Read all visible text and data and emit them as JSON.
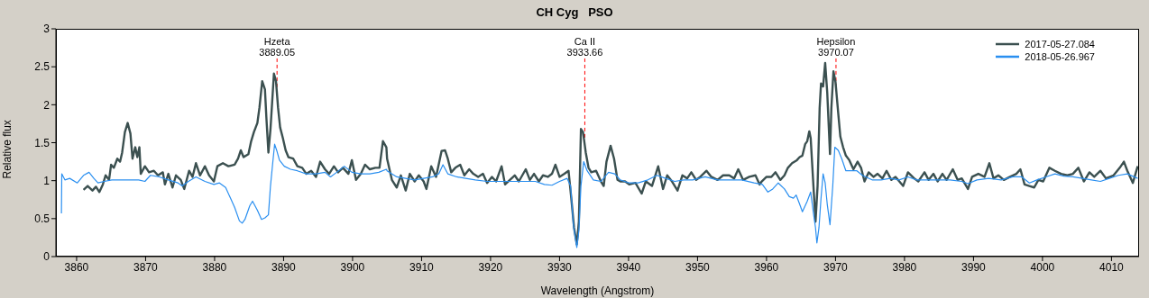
{
  "chart_data": {
    "type": "line",
    "title": "CH Cyg   PSO",
    "xlabel": "Wavelength (Angstrom)",
    "ylabel": "Relative flux",
    "xlim": [
      3857,
      4014
    ],
    "ylim": [
      0,
      3
    ],
    "xticks": [
      3860,
      3870,
      3880,
      3890,
      3900,
      3910,
      3920,
      3930,
      3940,
      3950,
      3960,
      3970,
      3980,
      3990,
      4000,
      4010
    ],
    "yticks": [
      0,
      0.5,
      1,
      1.5,
      2,
      2.5,
      3
    ],
    "legend": "top right",
    "marker": "none",
    "line_style": "solid",
    "ref_lines": [
      {
        "axis": "x",
        "value": 3889.05,
        "label": "Hzeta\n3889.05",
        "color": "#ff0000",
        "line_style": "dashed"
      },
      {
        "axis": "x",
        "value": 3933.66,
        "label": "Ca II\n3933.66",
        "color": "#ff0000",
        "line_style": "dashed"
      },
      {
        "axis": "x",
        "value": 3970.07,
        "label": "Hepsilon\n3970.07",
        "color": "#ff0000",
        "line_style": "dashed"
      }
    ],
    "series": [
      {
        "name": "2017-05-27.084",
        "color": "#3b5050",
        "x": [
          3861.0,
          3861.6,
          3862.3,
          3862.8,
          3863.3,
          3863.8,
          3864.2,
          3864.7,
          3865.0,
          3865.4,
          3865.9,
          3866.3,
          3866.6,
          3867.0,
          3867.4,
          3867.8,
          3868.1,
          3868.5,
          3868.8,
          3869.1,
          3869.3,
          3869.9,
          3870.5,
          3871.2,
          3871.8,
          3872.5,
          3872.8,
          3873.3,
          3873.9,
          3874.4,
          3875.1,
          3875.6,
          3876.3,
          3876.8,
          3877.3,
          3877.9,
          3878.6,
          3879.2,
          3879.9,
          3880.4,
          3881.2,
          3882.0,
          3882.9,
          3883.4,
          3883.8,
          3884.2,
          3884.9,
          3885.3,
          3885.7,
          3886.2,
          3886.5,
          3886.9,
          3887.3,
          3887.5,
          3887.8,
          3888.1,
          3888.6,
          3888.9,
          3889.2,
          3889.5,
          3889.9,
          3890.3,
          3890.7,
          3891.4,
          3892.0,
          3892.7,
          3893.3,
          3894.0,
          3894.7,
          3895.3,
          3896.0,
          3896.6,
          3897.3,
          3897.9,
          3898.6,
          3899.4,
          3899.9,
          3900.5,
          3901.2,
          3901.8,
          3902.5,
          3903.3,
          3903.9,
          3904.4,
          3904.9,
          3905.0,
          3905.7,
          3906.4,
          3907.0,
          3907.7,
          3908.3,
          3909.0,
          3909.6,
          3910.3,
          3910.7,
          3911.4,
          3912.1,
          3912.9,
          3913.4,
          3913.8,
          3914.3,
          3914.9,
          3915.6,
          3916.2,
          3916.9,
          3917.5,
          3918.2,
          3918.9,
          3919.5,
          3920.2,
          3920.8,
          3921.6,
          3922.1,
          3922.8,
          3923.5,
          3924.1,
          3925.1,
          3925.7,
          3926.3,
          3927.0,
          3927.6,
          3928.3,
          3928.9,
          3929.4,
          3930.0,
          3930.7,
          3931.3,
          3931.7,
          3932.1,
          3932.5,
          3932.8,
          3933.1,
          3933.4,
          3933.8,
          3934.2,
          3934.6,
          3935.3,
          3936.0,
          3936.4,
          3936.8,
          3937.4,
          3937.9,
          3938.4,
          3938.8,
          3939.5,
          3940.1,
          3941.0,
          3941.9,
          3942.5,
          3943.4,
          3944.3,
          3945.0,
          3945.6,
          3946.3,
          3947.1,
          3947.8,
          3948.5,
          3949.1,
          3949.8,
          3950.4,
          3951.3,
          3952.0,
          3952.9,
          3953.7,
          3954.6,
          3955.3,
          3955.9,
          3956.6,
          3957.5,
          3958.4,
          3959.0,
          3959.3,
          3960.0,
          3960.7,
          3961.3,
          3962.0,
          3962.6,
          3963.1,
          3963.7,
          3964.4,
          3964.8,
          3965.2,
          3965.6,
          3965.9,
          3966.2,
          3966.4,
          3966.8,
          3967.1,
          3967.4,
          3967.7,
          3967.9,
          3968.2,
          3968.5,
          3968.8,
          3969.2,
          3969.4,
          3969.7,
          3970.0,
          3970.4,
          3970.7,
          3971.1,
          3971.5,
          3972.0,
          3972.6,
          3973.2,
          3973.7,
          3974.2,
          3974.8,
          3975.5,
          3976.1,
          3976.8,
          3977.4,
          3978.1,
          3978.7,
          3979.8,
          3980.5,
          3981.4,
          3982.0,
          3982.9,
          3983.5,
          3984.2,
          3984.8,
          3985.5,
          3986.1,
          3987.0,
          3987.7,
          3988.3,
          3989.2,
          3989.8,
          3990.7,
          3991.6,
          3992.3,
          3992.9,
          3993.6,
          3994.4,
          3995.3,
          3996.2,
          3996.8,
          3997.4,
          3998.1,
          3998.8,
          3999.4,
          4000.1,
          4001.0,
          4001.8,
          4002.7,
          4003.6,
          4004.4,
          4005.2,
          4006.0,
          4006.8,
          4007.5,
          4008.4,
          4009.2,
          4010.3,
          4011.2,
          4011.8,
          4012.3,
          4013.1,
          4013.8
        ],
        "values": [
          0.88,
          0.93,
          0.87,
          0.92,
          0.85,
          0.95,
          1.07,
          1.01,
          1.21,
          1.17,
          1.29,
          1.25,
          1.37,
          1.64,
          1.76,
          1.62,
          1.29,
          1.44,
          1.31,
          1.44,
          1.09,
          1.19,
          1.11,
          1.13,
          1.07,
          1.11,
          0.95,
          1.09,
          0.91,
          1.07,
          1.01,
          0.89,
          1.13,
          1.05,
          1.23,
          1.07,
          1.19,
          1.07,
          0.99,
          1.19,
          1.23,
          1.19,
          1.21,
          1.29,
          1.4,
          1.31,
          1.35,
          1.52,
          1.64,
          1.76,
          1.96,
          2.31,
          2.2,
          1.84,
          1.37,
          1.68,
          2.41,
          2.31,
          1.96,
          1.7,
          1.56,
          1.4,
          1.31,
          1.29,
          1.19,
          1.17,
          1.09,
          1.13,
          1.05,
          1.25,
          1.15,
          1.09,
          1.19,
          1.11,
          1.17,
          1.09,
          1.27,
          1.01,
          1.09,
          1.21,
          1.15,
          1.17,
          1.17,
          1.52,
          1.44,
          1.29,
          1.01,
          0.91,
          1.07,
          0.87,
          1.09,
          0.99,
          1.07,
          0.99,
          0.89,
          1.19,
          1.05,
          1.39,
          1.4,
          1.29,
          1.11,
          1.17,
          1.21,
          1.07,
          1.15,
          1.09,
          1.05,
          1.09,
          0.97,
          1.05,
          0.99,
          1.19,
          0.95,
          1.01,
          1.07,
          0.99,
          1.15,
          1.01,
          1.09,
          0.99,
          1.07,
          1.05,
          1.09,
          1.21,
          1.05,
          1.09,
          1.13,
          0.77,
          0.38,
          0.16,
          0.46,
          1.68,
          1.64,
          1.37,
          1.17,
          1.11,
          1.13,
          0.99,
          0.93,
          1.25,
          1.46,
          1.29,
          1.01,
          0.99,
          0.99,
          0.95,
          0.97,
          0.83,
          0.99,
          0.93,
          1.19,
          0.89,
          1.07,
          0.99,
          0.87,
          1.07,
          1.03,
          1.11,
          1.01,
          1.05,
          1.13,
          1.05,
          1.01,
          1.07,
          1.07,
          1.03,
          1.15,
          1.01,
          1.05,
          1.07,
          0.95,
          0.99,
          1.05,
          1.05,
          1.11,
          1.01,
          1.07,
          1.17,
          1.23,
          1.27,
          1.31,
          1.33,
          1.48,
          1.52,
          1.65,
          1.56,
          0.93,
          0.46,
          0.93,
          1.96,
          2.28,
          2.24,
          2.55,
          2.16,
          1.35,
          1.96,
          2.44,
          2.3,
          1.88,
          1.58,
          1.44,
          1.33,
          1.27,
          1.15,
          1.25,
          1.17,
          0.99,
          1.11,
          1.05,
          1.09,
          1.03,
          1.13,
          1.01,
          1.05,
          0.93,
          1.11,
          1.03,
          0.99,
          1.11,
          1.01,
          1.09,
          0.99,
          1.09,
          1.01,
          1.15,
          1.01,
          1.03,
          0.89,
          1.05,
          1.09,
          1.05,
          1.23,
          1.03,
          1.07,
          1.01,
          1.05,
          1.09,
          1.15,
          0.95,
          0.93,
          0.91,
          1.01,
          0.99,
          1.17,
          1.13,
          1.09,
          1.07,
          1.09,
          1.17,
          0.99,
          1.11,
          1.05,
          1.13,
          1.03,
          1.07,
          1.17,
          1.25,
          1.13,
          0.97,
          1.19
        ]
      },
      {
        "name": "2018-05-26.967",
        "color": "#2a8ff0",
        "x": [
          3857.8,
          3857.85,
          3858.3,
          3859.0,
          3860.1,
          3861.0,
          3861.8,
          3862.5,
          3863.1,
          3864.0,
          3865.1,
          3866.4,
          3867.7,
          3869.0,
          3869.9,
          3870.7,
          3872.0,
          3873.3,
          3874.7,
          3875.3,
          3876.2,
          3877.3,
          3878.6,
          3879.9,
          3880.7,
          3881.6,
          3882.3,
          3882.9,
          3883.6,
          3884.0,
          3884.4,
          3885.1,
          3885.5,
          3886.2,
          3886.8,
          3887.3,
          3887.8,
          3888.1,
          3888.4,
          3888.7,
          3889.0,
          3889.4,
          3890.1,
          3891.0,
          3892.0,
          3893.3,
          3894.7,
          3896.0,
          3896.8,
          3897.7,
          3898.8,
          3899.9,
          3901.2,
          3902.5,
          3903.8,
          3904.9,
          3905.0,
          3906.4,
          3907.7,
          3909.0,
          3910.3,
          3911.6,
          3912.5,
          3913.1,
          3913.8,
          3915.1,
          3916.4,
          3917.8,
          3919.5,
          3921.3,
          3923.0,
          3924.8,
          3926.5,
          3927.8,
          3928.9,
          3930.0,
          3931.1,
          3931.6,
          3932.0,
          3932.5,
          3932.8,
          3933.1,
          3933.5,
          3934.0,
          3934.9,
          3936.0,
          3937.1,
          3938.0,
          3938.8,
          3940.1,
          3941.4,
          3942.8,
          3944.1,
          3945.4,
          3946.7,
          3948.0,
          3949.3,
          3951.1,
          3952.9,
          3954.6,
          3956.4,
          3958.2,
          3959.4,
          3960.2,
          3960.9,
          3961.7,
          3962.6,
          3963.3,
          3963.9,
          3964.3,
          3964.8,
          3965.2,
          3965.9,
          3966.4,
          3966.8,
          3967.1,
          3967.3,
          3967.6,
          3967.9,
          3968.2,
          3968.5,
          3968.8,
          3969.2,
          3969.6,
          3969.9,
          3970.4,
          3970.9,
          3971.5,
          3972.2,
          3973.1,
          3973.9,
          3975.3,
          3976.6,
          3977.9,
          3979.2,
          3980.5,
          3981.8,
          3983.1,
          3984.8,
          3986.6,
          3988.3,
          3989.2,
          3990.5,
          3992.2,
          3994.0,
          3995.7,
          3997.0,
          3998.1,
          3999.2,
          4000.5,
          4001.8,
          4003.1,
          4004.4,
          4005.8,
          4007.1,
          4008.4,
          4009.7,
          4011.0,
          4012.3,
          4013.8
        ],
        "values": [
          0.57,
          1.09,
          1.01,
          1.03,
          0.97,
          1.07,
          1.11,
          1.03,
          0.97,
          0.99,
          1.01,
          1.01,
          1.01,
          1.01,
          0.99,
          1.07,
          1.05,
          1.01,
          0.97,
          0.93,
          0.99,
          1.05,
          0.99,
          0.95,
          0.97,
          0.91,
          0.77,
          0.65,
          0.47,
          0.44,
          0.49,
          0.67,
          0.73,
          0.61,
          0.49,
          0.51,
          0.55,
          0.93,
          1.21,
          1.48,
          1.4,
          1.27,
          1.19,
          1.15,
          1.13,
          1.09,
          1.09,
          1.11,
          1.05,
          1.11,
          1.19,
          1.11,
          1.09,
          1.09,
          1.11,
          1.15,
          1.13,
          1.05,
          1.03,
          1.01,
          1.03,
          1.05,
          1.09,
          1.21,
          1.09,
          1.05,
          1.03,
          1.01,
          0.99,
          0.99,
          0.99,
          0.99,
          0.99,
          0.95,
          0.94,
          0.99,
          1.03,
          0.93,
          0.42,
          0.12,
          0.34,
          0.93,
          1.25,
          1.13,
          1.01,
          0.99,
          1.11,
          1.09,
          1.01,
          0.97,
          0.97,
          1.01,
          1.07,
          1.03,
          0.99,
          1.01,
          1.01,
          1.05,
          1.01,
          1.01,
          1.01,
          0.97,
          0.95,
          0.85,
          0.89,
          0.97,
          0.89,
          0.79,
          0.77,
          0.81,
          0.69,
          0.59,
          0.73,
          0.85,
          0.57,
          0.38,
          0.18,
          0.38,
          0.77,
          1.09,
          0.97,
          0.69,
          0.42,
          0.93,
          1.44,
          1.4,
          1.29,
          1.13,
          1.13,
          1.13,
          1.07,
          1.01,
          1.01,
          1.03,
          1.01,
          1.05,
          1.01,
          1.01,
          1.01,
          1.01,
          0.99,
          0.96,
          1.01,
          1.03,
          1.01,
          1.05,
          1.05,
          0.97,
          1.01,
          1.05,
          1.09,
          1.06,
          1.05,
          1.03,
          1.01,
          0.99,
          1.03,
          1.07,
          1.09,
          1.03
        ]
      }
    ]
  }
}
